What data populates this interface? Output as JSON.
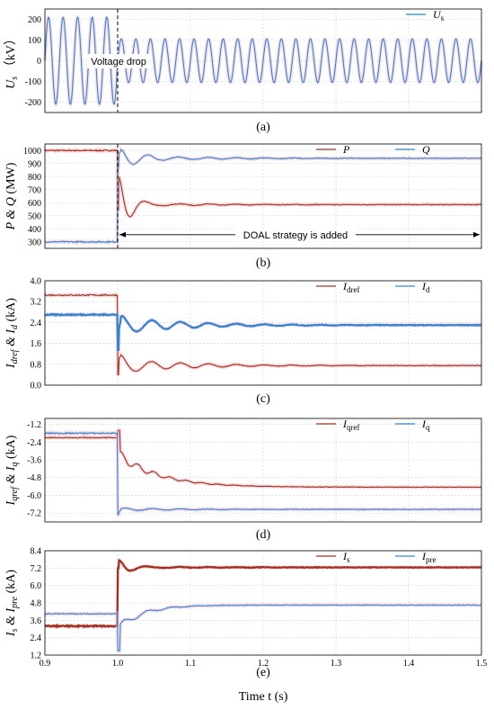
{
  "colors": {
    "red": "#a0301e",
    "blue": "#2f86d6",
    "grid": "#d0d0d0",
    "glow": "#f4b6c4"
  },
  "xaxis": {
    "range": [
      0.9,
      1.5
    ],
    "ticks": [
      "0.9",
      "1.0",
      "1.1",
      "1.2",
      "1.3",
      "1.4",
      "1.5"
    ],
    "label": "Time t (s)"
  },
  "chart_data": [
    {
      "type": "line",
      "id": "a",
      "caption": "(a)",
      "ylabel": "U",
      "ylabel_sub": "s",
      "ylabel_unit": "（kV）",
      "ylim": [
        -250,
        250
      ],
      "yticks": [
        "200",
        "100",
        "0",
        "-100",
        "-200"
      ],
      "ytick_values": [
        200,
        100,
        0,
        -100,
        -200
      ],
      "annotation": "Voltage drop",
      "series": [
        {
          "name": "U",
          "sub": "s",
          "color": "blue",
          "model": {
            "kind": "sine",
            "freq_hz": 50,
            "amp_before": 210,
            "amp_after": 105,
            "t_event": 1.0
          }
        }
      ]
    },
    {
      "type": "line",
      "id": "b",
      "caption": "(b)",
      "ylabel": "P & Q",
      "ylabel_unit": "(MW)",
      "ylim": [
        250,
        1050
      ],
      "yticks": [
        "1000",
        "900",
        "800",
        "700",
        "600",
        "500",
        "400",
        "300"
      ],
      "ytick_values": [
        1000,
        900,
        800,
        700,
        600,
        500,
        400,
        300
      ],
      "annotation": "DOAL strategy is added",
      "series": [
        {
          "name": "P",
          "color": "red",
          "model": {
            "kind": "step",
            "before": 1000,
            "after": 585,
            "peak": 860,
            "dip": 545,
            "osc": 22,
            "decay": 60,
            "t_event": 1.0
          }
        },
        {
          "name": "Q",
          "color": "blue",
          "model": {
            "kind": "step",
            "before": 300,
            "after": 940,
            "peak": 1010,
            "dip": 870,
            "osc": 45,
            "decay": 25,
            "t_event": 1.0
          }
        }
      ]
    },
    {
      "type": "line",
      "id": "c",
      "caption": "(c)",
      "ylabel": "I",
      "ylabel_sub": "dref",
      "ylabel_mid": " & I",
      "ylabel_sub2": "d",
      "ylabel_unit": "(kA)",
      "ylim": [
        0,
        4.0
      ],
      "yticks": [
        "4.0",
        "3.2",
        "2.4",
        "1.6",
        "0.8",
        "0.0"
      ],
      "ytick_values": [
        4.0,
        3.2,
        2.4,
        1.6,
        0.8,
        0.0
      ],
      "series": [
        {
          "name": "I",
          "sub": "dref",
          "color": "red",
          "model": {
            "kind": "step",
            "before": 3.45,
            "after": 0.75,
            "peak": 1.2,
            "dip": 0.4,
            "osc": 0.3,
            "decay": 55,
            "t_event": 1.0
          }
        },
        {
          "name": "I",
          "sub": "d",
          "color": "blue",
          "model": {
            "kind": "step",
            "before": 2.7,
            "after": 2.3,
            "peak": 2.65,
            "dip": 1.35,
            "osc": 0.35,
            "decay": 55,
            "t_event": 1.0,
            "thick": true
          }
        }
      ]
    },
    {
      "type": "line",
      "id": "d",
      "caption": "(d)",
      "ylabel": "I",
      "ylabel_sub": "qref",
      "ylabel_mid": " & I",
      "ylabel_sub2": "q",
      "ylabel_unit": "(kA)",
      "ylim": [
        -7.8,
        -0.8
      ],
      "yticks": [
        "-1.2",
        "-2.4",
        "-3.6",
        "-4.8",
        "-6.0",
        "-7.2"
      ],
      "ytick_values": [
        -1.2,
        -2.4,
        -3.6,
        -4.8,
        -6.0,
        -7.2
      ],
      "series": [
        {
          "name": "I",
          "sub": "qref",
          "color": "red",
          "model": {
            "kind": "staircase",
            "before": -2.1,
            "after": -5.45,
            "t_event": 1.0
          }
        },
        {
          "name": "I",
          "sub": "q",
          "color": "blue",
          "model": {
            "kind": "step",
            "before": -1.8,
            "after": -6.95,
            "peak": -6.95,
            "dip": -7.3,
            "osc": 0.1,
            "decay": 60,
            "t_event": 1.0
          }
        }
      ]
    },
    {
      "type": "line",
      "id": "e",
      "caption": "(e)",
      "ylabel": "I",
      "ylabel_sub": "s",
      "ylabel_mid": " & I",
      "ylabel_sub2": "pre",
      "ylabel_unit": "(kA)",
      "ylim": [
        1.2,
        8.4
      ],
      "yticks": [
        "8.4",
        "7.2",
        "6.0",
        "4.8",
        "3.6",
        "2.4",
        "1.2"
      ],
      "ytick_values": [
        8.4,
        7.2,
        6.0,
        4.8,
        3.6,
        2.4,
        1.2
      ],
      "series": [
        {
          "name": "I",
          "sub": "s",
          "color": "red",
          "model": {
            "kind": "step",
            "before": 3.2,
            "after": 7.25,
            "peak": 7.85,
            "dip": 7.2,
            "osc": 0.1,
            "decay": 50,
            "t_event": 1.0,
            "thick": true
          }
        },
        {
          "name": "I",
          "sub": "pre",
          "color": "blue",
          "model": {
            "kind": "slowrise",
            "before": 4.05,
            "after": 4.65,
            "dip": 1.5,
            "t_event": 1.0
          }
        }
      ]
    }
  ]
}
